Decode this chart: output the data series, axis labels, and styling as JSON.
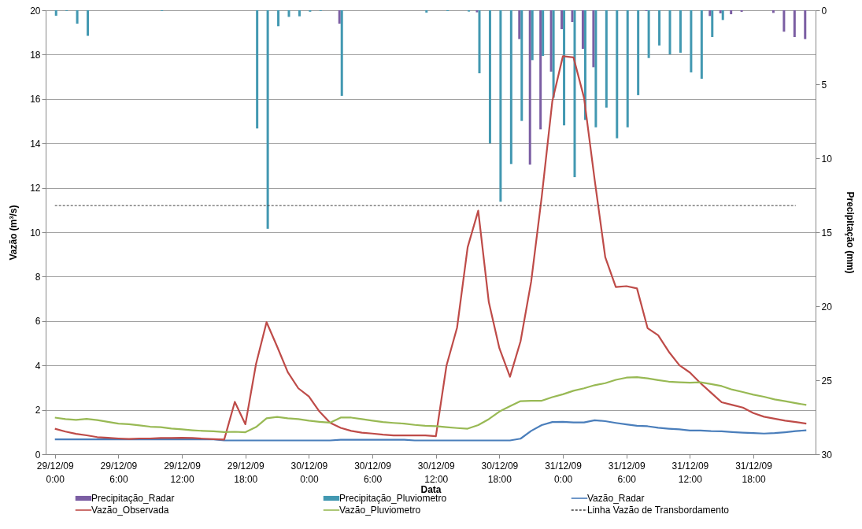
{
  "chart_data": {
    "type": "line",
    "xlabel": "Data",
    "ylabel": "Vazão (m³/s)",
    "y2label": "Precipitação (mm)",
    "categories": [
      "29/12/09 0:00",
      null,
      null,
      null,
      null,
      null,
      "29/12/09 6:00",
      null,
      null,
      null,
      null,
      null,
      "29/12/09 12:00",
      null,
      null,
      null,
      null,
      null,
      "29/12/09 18:00",
      null,
      null,
      null,
      null,
      null,
      "30/12/09 0:00",
      null,
      null,
      null,
      null,
      null,
      "30/12/09 6:00",
      null,
      null,
      null,
      null,
      null,
      "30/12/09 12:00",
      null,
      null,
      null,
      null,
      null,
      "30/12/09 18:00",
      null,
      null,
      null,
      null,
      null,
      "31/12/09 0:00",
      null,
      null,
      null,
      null,
      null,
      "31/12/09 6:00",
      null,
      null,
      null,
      null,
      null,
      "31/12/09 12:00",
      null,
      null,
      null,
      null,
      null,
      "31/12/09 18:00",
      null,
      null,
      null,
      null,
      null
    ],
    "ylim": [
      0,
      20
    ],
    "yticks": [
      0,
      2,
      4,
      6,
      8,
      10,
      12,
      14,
      16,
      18,
      20
    ],
    "y2lim": [
      30,
      0
    ],
    "y2ticks": [
      0,
      5,
      10,
      15,
      20,
      25,
      30
    ],
    "grid": "y",
    "legend": "bottom",
    "series": [
      {
        "name": "Precipitação_Radar",
        "type": "bar",
        "axis": "y2",
        "color": "#7b5ea3",
        "values": [
          0,
          0,
          0,
          0,
          0,
          0,
          0,
          0,
          0,
          0,
          0,
          0,
          0,
          0,
          0,
          0,
          0,
          0,
          0,
          0,
          0,
          0,
          0,
          0,
          0,
          0,
          0,
          0.91,
          0,
          0,
          0,
          0,
          0,
          0,
          0,
          0,
          0,
          0,
          0,
          0,
          0.14,
          0,
          0,
          0,
          1.95,
          10.43,
          8.05,
          4.15,
          1.28,
          0.8,
          2.61,
          3.85,
          0,
          0,
          0,
          0,
          0.05,
          0,
          0,
          0,
          0,
          0,
          0.39,
          0.21,
          0.27,
          0.11,
          0,
          0,
          0.18,
          1.45,
          1.81,
          1.95
        ]
      },
      {
        "name": "Precipitação_Pluviometro",
        "type": "bar",
        "axis": "y2",
        "color": "#4298b1",
        "values": [
          0.37,
          0.05,
          0.91,
          1.73,
          0,
          0,
          0,
          0,
          0,
          0,
          0.05,
          0,
          0,
          0,
          0,
          0,
          0,
          0,
          0,
          7.99,
          14.78,
          1.08,
          0.45,
          0.41,
          0.1,
          0.05,
          0,
          5.79,
          0,
          0,
          0,
          0,
          0,
          0,
          0,
          0.16,
          0,
          0.05,
          0,
          0.09,
          4.26,
          9.0,
          12.94,
          10.39,
          7.48,
          3.37,
          3.09,
          5.9,
          7.78,
          11.28,
          7.41,
          7.91,
          6.58,
          8.65,
          7.91,
          5.74,
          3.23,
          2.38,
          2.98,
          2.87,
          4.2,
          4.63,
          1.81,
          0.66,
          0,
          0,
          0,
          0,
          0,
          0,
          0,
          0
        ]
      },
      {
        "name": "Vazão_Radar",
        "color": "#4a7ebb",
        "values": [
          0.67,
          0.67,
          0.67,
          0.67,
          0.67,
          0.67,
          0.67,
          0.67,
          0.67,
          0.67,
          0.67,
          0.67,
          0.67,
          0.67,
          0.67,
          0.67,
          0.62,
          0.62,
          0.62,
          0.62,
          0.62,
          0.62,
          0.62,
          0.62,
          0.62,
          0.62,
          0.62,
          0.65,
          0.65,
          0.65,
          0.65,
          0.65,
          0.65,
          0.65,
          0.62,
          0.62,
          0.62,
          0.62,
          0.62,
          0.62,
          0.62,
          0.62,
          0.62,
          0.62,
          0.7,
          1.05,
          1.31,
          1.45,
          1.46,
          1.43,
          1.43,
          1.53,
          1.49,
          1.41,
          1.34,
          1.28,
          1.26,
          1.19,
          1.15,
          1.12,
          1.07,
          1.07,
          1.04,
          1.03,
          1.0,
          0.97,
          0.95,
          0.93,
          0.95,
          0.99,
          1.04,
          1.08
        ]
      },
      {
        "name": "Vazão_Observada",
        "color": "#be4b48",
        "values": [
          1.15,
          1.02,
          0.92,
          0.85,
          0.77,
          0.74,
          0.71,
          0.69,
          0.71,
          0.71,
          0.73,
          0.73,
          0.74,
          0.73,
          0.7,
          0.68,
          0.66,
          2.36,
          1.35,
          4.05,
          5.95,
          4.85,
          3.7,
          2.97,
          2.6,
          1.92,
          1.42,
          1.19,
          1.05,
          0.97,
          0.93,
          0.88,
          0.85,
          0.85,
          0.85,
          0.85,
          0.81,
          3.99,
          5.7,
          9.32,
          10.97,
          6.85,
          4.77,
          3.49,
          5.09,
          7.77,
          11.6,
          15.9,
          17.93,
          17.88,
          16.05,
          12.36,
          8.88,
          7.53,
          7.57,
          7.47,
          5.68,
          5.36,
          4.62,
          4.01,
          3.68,
          3.2,
          2.77,
          2.34,
          2.22,
          2.1,
          1.85,
          1.69,
          1.6,
          1.51,
          1.45,
          1.38
        ]
      },
      {
        "name": "Vazão_Pluviometro",
        "color": "#98b954",
        "values": [
          1.65,
          1.58,
          1.55,
          1.59,
          1.54,
          1.46,
          1.38,
          1.35,
          1.3,
          1.24,
          1.22,
          1.16,
          1.12,
          1.08,
          1.05,
          1.03,
          1.0,
          1.01,
          0.99,
          1.22,
          1.62,
          1.68,
          1.62,
          1.58,
          1.51,
          1.46,
          1.42,
          1.65,
          1.65,
          1.58,
          1.51,
          1.45,
          1.41,
          1.38,
          1.32,
          1.28,
          1.26,
          1.22,
          1.18,
          1.15,
          1.31,
          1.58,
          1.92,
          2.16,
          2.39,
          2.41,
          2.41,
          2.57,
          2.7,
          2.86,
          2.97,
          3.11,
          3.2,
          3.35,
          3.45,
          3.47,
          3.42,
          3.34,
          3.27,
          3.24,
          3.22,
          3.24,
          3.16,
          3.07,
          2.91,
          2.8,
          2.68,
          2.59,
          2.47,
          2.39,
          2.3,
          2.22
        ]
      },
      {
        "name": "Linha Vazão de Transbordamento",
        "line_style": "dashed",
        "color": "#404040",
        "values": [
          11.2,
          11.2,
          11.2,
          11.2,
          11.2,
          11.2,
          11.2,
          11.2,
          11.2,
          11.2,
          11.2,
          11.2,
          11.2,
          11.2,
          11.2,
          11.2,
          11.2,
          11.2,
          11.2,
          11.2,
          11.2,
          11.2,
          11.2,
          11.2,
          11.2,
          11.2,
          11.2,
          11.2,
          11.2,
          11.2,
          11.2,
          11.2,
          11.2,
          11.2,
          11.2,
          11.2,
          11.2,
          11.2,
          11.2,
          11.2,
          11.2,
          11.2,
          11.2,
          11.2,
          11.2,
          11.2,
          11.2,
          11.2,
          11.2,
          11.2,
          11.2,
          11.2,
          11.2,
          11.2,
          11.2,
          11.2,
          11.2,
          11.2,
          11.2,
          11.2,
          11.2,
          11.2,
          11.2,
          11.2,
          11.2,
          11.2,
          11.2,
          11.2,
          11.2,
          11.2,
          11.2,
          null
        ]
      }
    ]
  }
}
